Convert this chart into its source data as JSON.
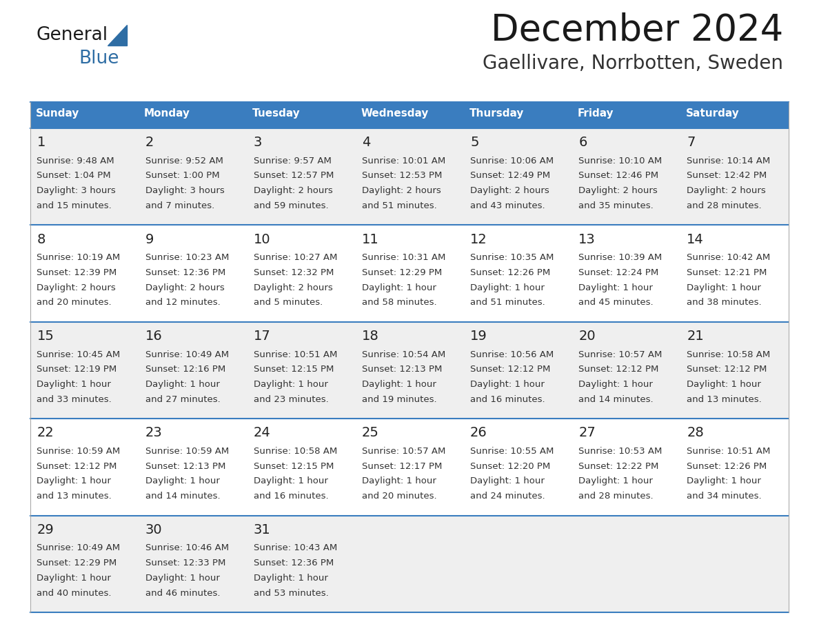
{
  "title": "December 2024",
  "subtitle": "Gaellivare, Norrbotten, Sweden",
  "header_color": "#3a7dbf",
  "header_text_color": "#ffffff",
  "day_names": [
    "Sunday",
    "Monday",
    "Tuesday",
    "Wednesday",
    "Thursday",
    "Friday",
    "Saturday"
  ],
  "bg_color": "#ffffff",
  "row_bg": [
    "#efefef",
    "#ffffff",
    "#efefef",
    "#ffffff",
    "#efefef"
  ],
  "separator_color": "#3a7dbf",
  "text_color": "#333333",
  "day_num_color": "#222222",
  "logo_text_color": "#1a1a1a",
  "logo_blue_color": "#2e6da4",
  "logo_triangle_color": "#2e6da4",
  "title_color": "#1a1a1a",
  "subtitle_color": "#333333",
  "days": [
    {
      "day": 1,
      "col": 0,
      "row": 0,
      "sunrise": "9:48 AM",
      "sunset": "1:04 PM",
      "daylight": "3 hours and 15 minutes."
    },
    {
      "day": 2,
      "col": 1,
      "row": 0,
      "sunrise": "9:52 AM",
      "sunset": "1:00 PM",
      "daylight": "3 hours and 7 minutes."
    },
    {
      "day": 3,
      "col": 2,
      "row": 0,
      "sunrise": "9:57 AM",
      "sunset": "12:57 PM",
      "daylight": "2 hours and 59 minutes."
    },
    {
      "day": 4,
      "col": 3,
      "row": 0,
      "sunrise": "10:01 AM",
      "sunset": "12:53 PM",
      "daylight": "2 hours and 51 minutes."
    },
    {
      "day": 5,
      "col": 4,
      "row": 0,
      "sunrise": "10:06 AM",
      "sunset": "12:49 PM",
      "daylight": "2 hours and 43 minutes."
    },
    {
      "day": 6,
      "col": 5,
      "row": 0,
      "sunrise": "10:10 AM",
      "sunset": "12:46 PM",
      "daylight": "2 hours and 35 minutes."
    },
    {
      "day": 7,
      "col": 6,
      "row": 0,
      "sunrise": "10:14 AM",
      "sunset": "12:42 PM",
      "daylight": "2 hours and 28 minutes."
    },
    {
      "day": 8,
      "col": 0,
      "row": 1,
      "sunrise": "10:19 AM",
      "sunset": "12:39 PM",
      "daylight": "2 hours and 20 minutes."
    },
    {
      "day": 9,
      "col": 1,
      "row": 1,
      "sunrise": "10:23 AM",
      "sunset": "12:36 PM",
      "daylight": "2 hours and 12 minutes."
    },
    {
      "day": 10,
      "col": 2,
      "row": 1,
      "sunrise": "10:27 AM",
      "sunset": "12:32 PM",
      "daylight": "2 hours and 5 minutes."
    },
    {
      "day": 11,
      "col": 3,
      "row": 1,
      "sunrise": "10:31 AM",
      "sunset": "12:29 PM",
      "daylight": "1 hour and 58 minutes."
    },
    {
      "day": 12,
      "col": 4,
      "row": 1,
      "sunrise": "10:35 AM",
      "sunset": "12:26 PM",
      "daylight": "1 hour and 51 minutes."
    },
    {
      "day": 13,
      "col": 5,
      "row": 1,
      "sunrise": "10:39 AM",
      "sunset": "12:24 PM",
      "daylight": "1 hour and 45 minutes."
    },
    {
      "day": 14,
      "col": 6,
      "row": 1,
      "sunrise": "10:42 AM",
      "sunset": "12:21 PM",
      "daylight": "1 hour and 38 minutes."
    },
    {
      "day": 15,
      "col": 0,
      "row": 2,
      "sunrise": "10:45 AM",
      "sunset": "12:19 PM",
      "daylight": "1 hour and 33 minutes."
    },
    {
      "day": 16,
      "col": 1,
      "row": 2,
      "sunrise": "10:49 AM",
      "sunset": "12:16 PM",
      "daylight": "1 hour and 27 minutes."
    },
    {
      "day": 17,
      "col": 2,
      "row": 2,
      "sunrise": "10:51 AM",
      "sunset": "12:15 PM",
      "daylight": "1 hour and 23 minutes."
    },
    {
      "day": 18,
      "col": 3,
      "row": 2,
      "sunrise": "10:54 AM",
      "sunset": "12:13 PM",
      "daylight": "1 hour and 19 minutes."
    },
    {
      "day": 19,
      "col": 4,
      "row": 2,
      "sunrise": "10:56 AM",
      "sunset": "12:12 PM",
      "daylight": "1 hour and 16 minutes."
    },
    {
      "day": 20,
      "col": 5,
      "row": 2,
      "sunrise": "10:57 AM",
      "sunset": "12:12 PM",
      "daylight": "1 hour and 14 minutes."
    },
    {
      "day": 21,
      "col": 6,
      "row": 2,
      "sunrise": "10:58 AM",
      "sunset": "12:12 PM",
      "daylight": "1 hour and 13 minutes."
    },
    {
      "day": 22,
      "col": 0,
      "row": 3,
      "sunrise": "10:59 AM",
      "sunset": "12:12 PM",
      "daylight": "1 hour and 13 minutes."
    },
    {
      "day": 23,
      "col": 1,
      "row": 3,
      "sunrise": "10:59 AM",
      "sunset": "12:13 PM",
      "daylight": "1 hour and 14 minutes."
    },
    {
      "day": 24,
      "col": 2,
      "row": 3,
      "sunrise": "10:58 AM",
      "sunset": "12:15 PM",
      "daylight": "1 hour and 16 minutes."
    },
    {
      "day": 25,
      "col": 3,
      "row": 3,
      "sunrise": "10:57 AM",
      "sunset": "12:17 PM",
      "daylight": "1 hour and 20 minutes."
    },
    {
      "day": 26,
      "col": 4,
      "row": 3,
      "sunrise": "10:55 AM",
      "sunset": "12:20 PM",
      "daylight": "1 hour and 24 minutes."
    },
    {
      "day": 27,
      "col": 5,
      "row": 3,
      "sunrise": "10:53 AM",
      "sunset": "12:22 PM",
      "daylight": "1 hour and 28 minutes."
    },
    {
      "day": 28,
      "col": 6,
      "row": 3,
      "sunrise": "10:51 AM",
      "sunset": "12:26 PM",
      "daylight": "1 hour and 34 minutes."
    },
    {
      "day": 29,
      "col": 0,
      "row": 4,
      "sunrise": "10:49 AM",
      "sunset": "12:29 PM",
      "daylight": "1 hour and 40 minutes."
    },
    {
      "day": 30,
      "col": 1,
      "row": 4,
      "sunrise": "10:46 AM",
      "sunset": "12:33 PM",
      "daylight": "1 hour and 46 minutes."
    },
    {
      "day": 31,
      "col": 2,
      "row": 4,
      "sunrise": "10:43 AM",
      "sunset": "12:36 PM",
      "daylight": "1 hour and 53 minutes."
    }
  ]
}
